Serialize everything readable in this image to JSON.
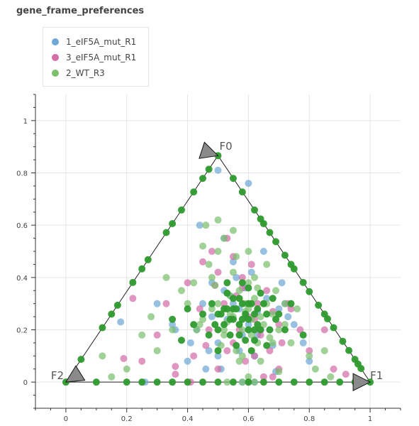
{
  "chart_data": {
    "type": "scatter",
    "title": "gene_frame_preferences",
    "xlabel": "",
    "ylabel": "",
    "xlim": [
      -0.1,
      1.1
    ],
    "ylim": [
      -0.1,
      1.1
    ],
    "x_ticks": [
      0,
      0.2,
      0.4,
      0.6,
      0.8,
      1
    ],
    "y_ticks": [
      0,
      0.2,
      0.4,
      0.6,
      0.8,
      1
    ],
    "grid": true,
    "legend_position": "top-left",
    "vertices": [
      {
        "label": "F0",
        "x": 0.5,
        "y": 0.866
      },
      {
        "label": "F1",
        "x": 1.0,
        "y": 0.0
      },
      {
        "label": "F2",
        "x": 0.0,
        "y": 0.0
      }
    ],
    "series": [
      {
        "name": "1_eIF5A_mut_R1",
        "color": "#6fa8d6",
        "x": [
          0.48,
          0.55,
          0.6,
          0.52,
          0.7,
          0.58,
          0.43,
          0.66,
          0.63,
          0.5,
          0.56,
          0.75,
          0.62,
          0.45,
          0.68,
          0.53,
          0.59,
          0.72,
          0.47,
          0.64,
          0.51,
          0.57,
          0.69,
          0.61,
          0.55,
          0.35,
          0.4,
          0.18,
          0.3,
          0.78,
          0.8,
          0.5,
          0.6,
          0.65,
          0.52,
          0.44,
          0.71,
          0.58,
          0.62,
          0.26,
          0.54,
          0.48,
          0.67,
          0.73,
          0.36,
          0.57,
          0.63,
          0.5,
          0.46,
          0.41
        ],
        "y": [
          0.25,
          0.3,
          0.22,
          0.35,
          0.28,
          0.18,
          0.2,
          0.32,
          0.27,
          0.15,
          0.4,
          0.22,
          0.1,
          0.3,
          0.14,
          0.24,
          0.36,
          0.3,
          0.12,
          0.2,
          0.05,
          0.12,
          0.04,
          0.42,
          0.46,
          0.22,
          0.08,
          0.23,
          0.3,
          0.15,
          0.08,
          0.81,
          0.76,
          0.5,
          0.55,
          0.6,
          0.38,
          0.0,
          0.0,
          0.0,
          0.33,
          0.38,
          0.2,
          0.25,
          0.2,
          0.28,
          0.18,
          0.1,
          0.05,
          0.15
        ]
      },
      {
        "name": "3_eIF5A_mut_R1",
        "color": "#d36ea8",
        "x": [
          0.52,
          0.6,
          0.47,
          0.66,
          0.55,
          0.7,
          0.44,
          0.62,
          0.58,
          0.5,
          0.73,
          0.56,
          0.64,
          0.49,
          0.68,
          0.53,
          0.61,
          0.46,
          0.77,
          0.59,
          0.3,
          0.22,
          0.36,
          0.42,
          0.8,
          0.85,
          0.88,
          0.65,
          0.41,
          0.19,
          0.55,
          0.68,
          0.4,
          0.63,
          0.5,
          0.45,
          0.57,
          0.71,
          0.6,
          0.36,
          0.48,
          0.33,
          0.74,
          0.62,
          0.53,
          0.92,
          0.25,
          0.58,
          0.67,
          0.7
        ],
        "y": [
          0.3,
          0.25,
          0.2,
          0.35,
          0.15,
          0.22,
          0.28,
          0.1,
          0.4,
          0.05,
          0.3,
          0.33,
          0.18,
          0.37,
          0.27,
          0.12,
          0.45,
          0.14,
          0.2,
          0.08,
          0.18,
          0.32,
          0.06,
          0.1,
          0.12,
          0.2,
          0.05,
          0.02,
          0.0,
          0.09,
          0.48,
          0.02,
          0.38,
          0.3,
          0.42,
          0.46,
          0.2,
          0.15,
          0.0,
          0.03,
          0.5,
          0.3,
          0.28,
          0.24,
          0.55,
          0.03,
          0.08,
          0.36,
          0.12,
          0.05
        ]
      },
      {
        "name": "2_WT_R3",
        "color": "#7cbf6f",
        "x": [
          0.55,
          0.6,
          0.5,
          0.65,
          0.58,
          0.62,
          0.52,
          0.68,
          0.45,
          0.7,
          0.57,
          0.63,
          0.48,
          0.66,
          0.53,
          0.59,
          0.72,
          0.43,
          0.61,
          0.56,
          0.54,
          0.64,
          0.49,
          0.67,
          0.51,
          0.6,
          0.58,
          0.62,
          0.55,
          0.57,
          0.47,
          0.69,
          0.74,
          0.4,
          0.35,
          0.3,
          0.25,
          0.2,
          0.8,
          0.76,
          0.85,
          0.5,
          0.45,
          0.52,
          0.66,
          0.7,
          0.6,
          0.56,
          0.46,
          0.42,
          0.62,
          0.58,
          0.53,
          0.64,
          0.38,
          0.33,
          0.28,
          0.15,
          0.12,
          0.82,
          0.87,
          0.5,
          0.55,
          0.6,
          0.48,
          0.63,
          0.65,
          0.72,
          0.57,
          0.52,
          0.59,
          0.54,
          0.61,
          0.44,
          0.68
        ],
        "y": [
          0.25,
          0.28,
          0.3,
          0.22,
          0.2,
          0.32,
          0.18,
          0.26,
          0.24,
          0.2,
          0.35,
          0.15,
          0.28,
          0.3,
          0.23,
          0.27,
          0.22,
          0.2,
          0.18,
          0.12,
          0.33,
          0.25,
          0.37,
          0.17,
          0.14,
          0.38,
          0.1,
          0.4,
          0.42,
          0.08,
          0.45,
          0.35,
          0.15,
          0.3,
          0.2,
          0.12,
          0.18,
          0.05,
          0.1,
          0.28,
          0.12,
          0.5,
          0.52,
          0.55,
          0.45,
          0.04,
          0.02,
          0.48,
          0.6,
          0.38,
          0.0,
          0.0,
          0.0,
          0.08,
          0.35,
          0.4,
          0.25,
          0.02,
          0.1,
          0.05,
          0.02,
          0.62,
          0.58,
          0.5,
          0.4,
          0.36,
          0.3,
          0.3,
          0.22,
          0.2,
          0.3,
          0.26,
          0.24,
          0.22,
          0.15
        ]
      },
      {
        "name": "",
        "color": "#2e9a2e",
        "x": [
          0.5,
          0.55,
          0.6,
          0.52,
          0.58,
          0.62,
          0.57,
          0.54,
          0.66,
          0.48,
          0.64,
          0.6,
          0.56,
          0.53,
          0.59,
          0.67,
          0.5,
          0.63,
          0.61,
          0.58,
          0.55,
          0.45,
          0.7,
          0.52,
          0.65,
          0.6,
          0.57,
          0.53,
          0.62,
          0.68,
          0.47,
          0.72,
          0.42,
          0.4,
          0.38,
          0.74,
          0.78,
          0.35,
          0.5,
          0.59,
          0.56,
          0.63,
          0.54,
          0.6,
          0.66,
          0.51,
          0.58,
          0.62,
          0.55,
          0.61,
          0.64,
          0.57,
          0.49,
          0.53,
          0.69
        ],
        "y": [
          0.26,
          0.28,
          0.24,
          0.22,
          0.3,
          0.2,
          0.32,
          0.18,
          0.26,
          0.3,
          0.34,
          0.36,
          0.14,
          0.34,
          0.16,
          0.2,
          0.2,
          0.28,
          0.12,
          0.38,
          0.24,
          0.26,
          0.26,
          0.28,
          0.3,
          0.3,
          0.22,
          0.38,
          0.16,
          0.32,
          0.18,
          0.2,
          0.22,
          0.28,
          0.16,
          0.3,
          0.18,
          0.24,
          0.12,
          0.26,
          0.28,
          0.22,
          0.24,
          0.2,
          0.14,
          0.26,
          0.24,
          0.26,
          0.32,
          0.3,
          0.2,
          0.18,
          0.22,
          0.28,
          0.24
        ]
      },
      {
        "name": "",
        "color": "#2e9a2e",
        "x": [
          0.0,
          0.1,
          0.2,
          0.25,
          0.3,
          0.35,
          0.4,
          0.45,
          0.5,
          0.55,
          0.6,
          0.65,
          0.7,
          0.75,
          0.8,
          0.85,
          0.9,
          0.95,
          1.0,
          0.05,
          0.15,
          0.25,
          0.35,
          0.45,
          0.5,
          0.55,
          0.65,
          0.75,
          0.85,
          0.95,
          0.62,
          0.58,
          0.67,
          0.72,
          0.78,
          0.83,
          0.88,
          0.93,
          0.97,
          0.12,
          0.17,
          0.22,
          0.27,
          0.33,
          0.38,
          0.42,
          0.47,
          0.64,
          0.69,
          0.74,
          0.8,
          0.86,
          0.91,
          0.96
        ],
        "y": [
          0.0,
          0.0,
          0.0,
          0.0,
          0.0,
          0.0,
          0.0,
          0.0,
          0.0,
          0.0,
          0.0,
          0.0,
          0.0,
          0.0,
          0.0,
          0.0,
          0.0,
          0.0,
          0.0,
          0.087,
          0.26,
          0.433,
          0.606,
          0.779,
          0.866,
          0.779,
          0.606,
          0.433,
          0.26,
          0.087,
          0.658,
          0.727,
          0.572,
          0.485,
          0.381,
          0.294,
          0.208,
          0.121,
          0.052,
          0.208,
          0.294,
          0.381,
          0.468,
          0.572,
          0.658,
          0.727,
          0.814,
          0.624,
          0.537,
          0.45,
          0.346,
          0.242,
          0.156,
          0.069
        ]
      }
    ]
  }
}
